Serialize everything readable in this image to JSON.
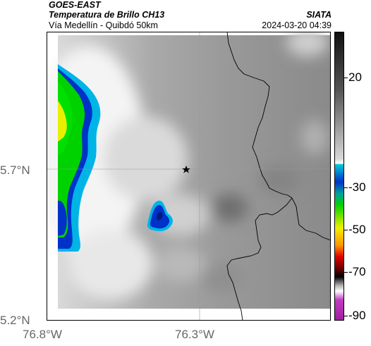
{
  "header": {
    "satellite": "GOES-EAST",
    "product": "Temperatura de Brillo CH13",
    "region": "Vía Medellín - Quibdó 50km",
    "organization": "SIATA",
    "timestamp": "2024-03-20 04:39"
  },
  "map": {
    "lat_ticks": [
      "5.7°N",
      "5.2°N"
    ],
    "lon_ticks": [
      "76.8°W",
      "76.3°W"
    ],
    "marker": "star-marker"
  },
  "colorbar": {
    "ticks": [
      "20",
      "-30",
      "-50",
      "-70",
      "-90"
    ],
    "colors": {
      "warm_top": "#111111",
      "warm_mid": "#808080",
      "white": "#ffffff",
      "cyan": "#00c8d8",
      "blue": "#0032c8",
      "green": "#00d200",
      "yellow": "#f0f000",
      "orange": "#ff9600",
      "red": "#e00000",
      "dark_red": "#700000",
      "black": "#000000",
      "magenta": "#c03cc0"
    }
  }
}
